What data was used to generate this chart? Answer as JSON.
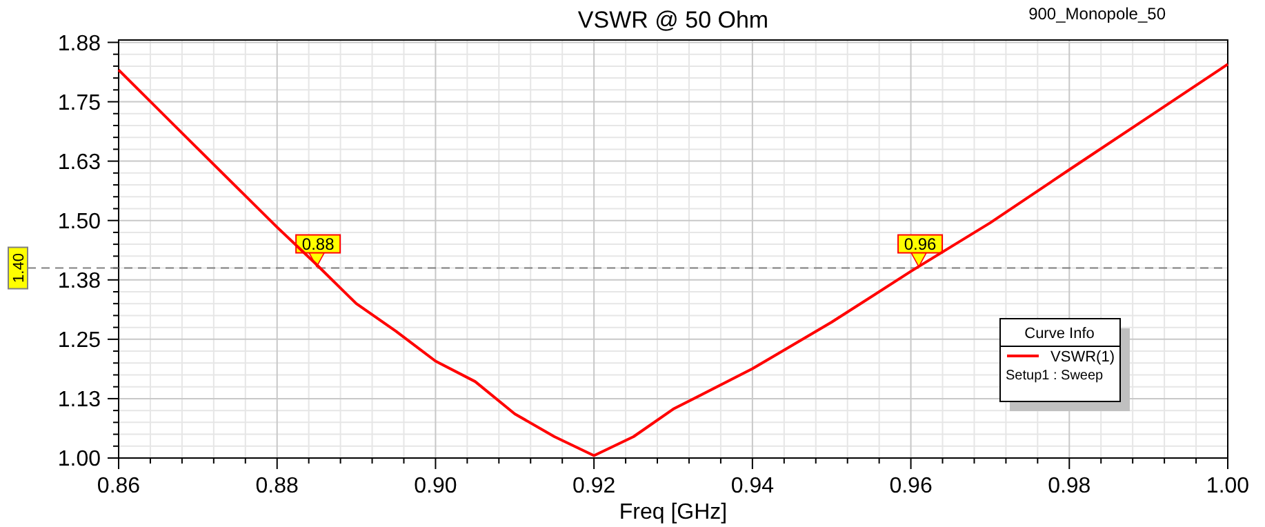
{
  "chart_data": {
    "type": "line",
    "title": "VSWR @ 50 Ohm",
    "subtitle": "900_Monopole_50",
    "xlabel": "Freq [GHz]",
    "legend_title": "Curve Info",
    "legend": "right",
    "grid": true,
    "marker": "none",
    "line_style": "solid",
    "xlim": [
      0.86,
      1.0
    ],
    "xticks": [
      0.86,
      0.88,
      {
        "value": 0.9,
        "label": "0.90"
      },
      0.92,
      0.94,
      0.96,
      0.98,
      {
        "value": 1.0,
        "label": "1.00"
      }
    ],
    "ylim": [
      1.0,
      1.88
    ],
    "yticks": [
      {
        "value": 1.0,
        "label": "1.00"
      },
      {
        "value": 1.125,
        "label": "1.13"
      },
      1.25,
      {
        "value": 1.375,
        "label": "1.38"
      },
      {
        "value": 1.5,
        "label": "1.50"
      },
      {
        "value": 1.625,
        "label": "1.63"
      },
      1.75,
      {
        "value": 1.875,
        "label": "1.88"
      }
    ],
    "ref_lines": [
      {
        "axis": "y",
        "value": 1.4,
        "label": "1.40",
        "color": "#808080",
        "line_style": "dashed"
      }
    ],
    "annotations": [
      {
        "text": "0.88",
        "x": 0.885,
        "y": 1.4
      },
      {
        "text": "0.96",
        "x": 0.961,
        "y": 1.4
      },
      "Setup1 : Sweep"
    ],
    "series": [
      {
        "name": "VSWR(1)",
        "color": "#ff0000",
        "x": [
          0.86,
          0.87,
          0.88,
          0.885,
          0.89,
          0.895,
          0.9,
          0.905,
          0.91,
          0.915,
          0.92,
          0.925,
          0.93,
          0.94,
          0.95,
          0.96,
          0.97,
          0.98,
          0.99,
          1.0
        ],
        "values": [
          1.817,
          1.651,
          1.486,
          1.407,
          1.325,
          1.267,
          1.204,
          1.161,
          1.093,
          1.045,
          1.005,
          1.045,
          1.103,
          1.188,
          1.286,
          1.393,
          1.495,
          1.607,
          1.718,
          1.829
        ]
      }
    ]
  }
}
